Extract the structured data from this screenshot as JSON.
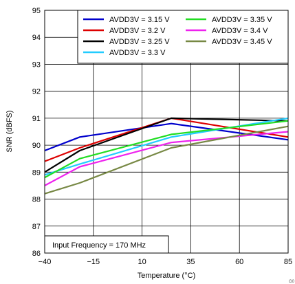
{
  "chart_data": {
    "type": "line",
    "xlabel": "Temperature (°C)",
    "ylabel": "SNR (dBFS)",
    "xlim": [
      -40,
      85
    ],
    "ylim": [
      86,
      95
    ],
    "xticks": [
      -40,
      -15,
      10,
      35,
      60,
      85
    ],
    "xtick_labels": [
      "−40",
      "−15",
      "10",
      "35",
      "60",
      "85"
    ],
    "yticks": [
      86,
      87,
      88,
      89,
      90,
      91,
      92,
      93,
      94,
      95
    ],
    "ytick_labels": [
      "86",
      "87",
      "88",
      "89",
      "90",
      "91",
      "92",
      "93",
      "94",
      "95"
    ],
    "grid": true,
    "legend_position": "top-right",
    "annotation": "Input Frequency = 170 MHz",
    "corner_label": "G0",
    "series": [
      {
        "name": "AVDD3V = 3.15 V",
        "color": "#0000cc",
        "x": [
          -40,
          -22,
          25,
          85
        ],
        "y": [
          89.8,
          90.3,
          90.8,
          90.2
        ]
      },
      {
        "name": "AVDD3V = 3.2 V",
        "color": "#dd0000",
        "x": [
          -40,
          -22,
          25,
          85
        ],
        "y": [
          89.4,
          89.9,
          91.0,
          90.3
        ]
      },
      {
        "name": "AVDD3V = 3.25 V",
        "color": "#000000",
        "x": [
          -40,
          -22,
          25,
          85
        ],
        "y": [
          89.0,
          89.8,
          91.0,
          90.9
        ]
      },
      {
        "name": "AVDD3V = 3.3 V",
        "color": "#22ccff",
        "x": [
          -40,
          -22,
          25,
          85
        ],
        "y": [
          88.9,
          89.3,
          90.3,
          91.0
        ]
      },
      {
        "name": "AVDD3V = 3.35 V",
        "color": "#22dd22",
        "x": [
          -40,
          -22,
          25,
          85
        ],
        "y": [
          88.8,
          89.5,
          90.4,
          90.9
        ]
      },
      {
        "name": "AVDD3V = 3.4 V",
        "color": "#ee22ee",
        "x": [
          -40,
          -22,
          25,
          85
        ],
        "y": [
          88.5,
          89.2,
          90.1,
          90.5
        ]
      },
      {
        "name": "AVDD3V = 3.45 V",
        "color": "#778844",
        "x": [
          -40,
          -22,
          25,
          85
        ],
        "y": [
          88.2,
          88.6,
          89.9,
          90.7
        ]
      }
    ]
  }
}
